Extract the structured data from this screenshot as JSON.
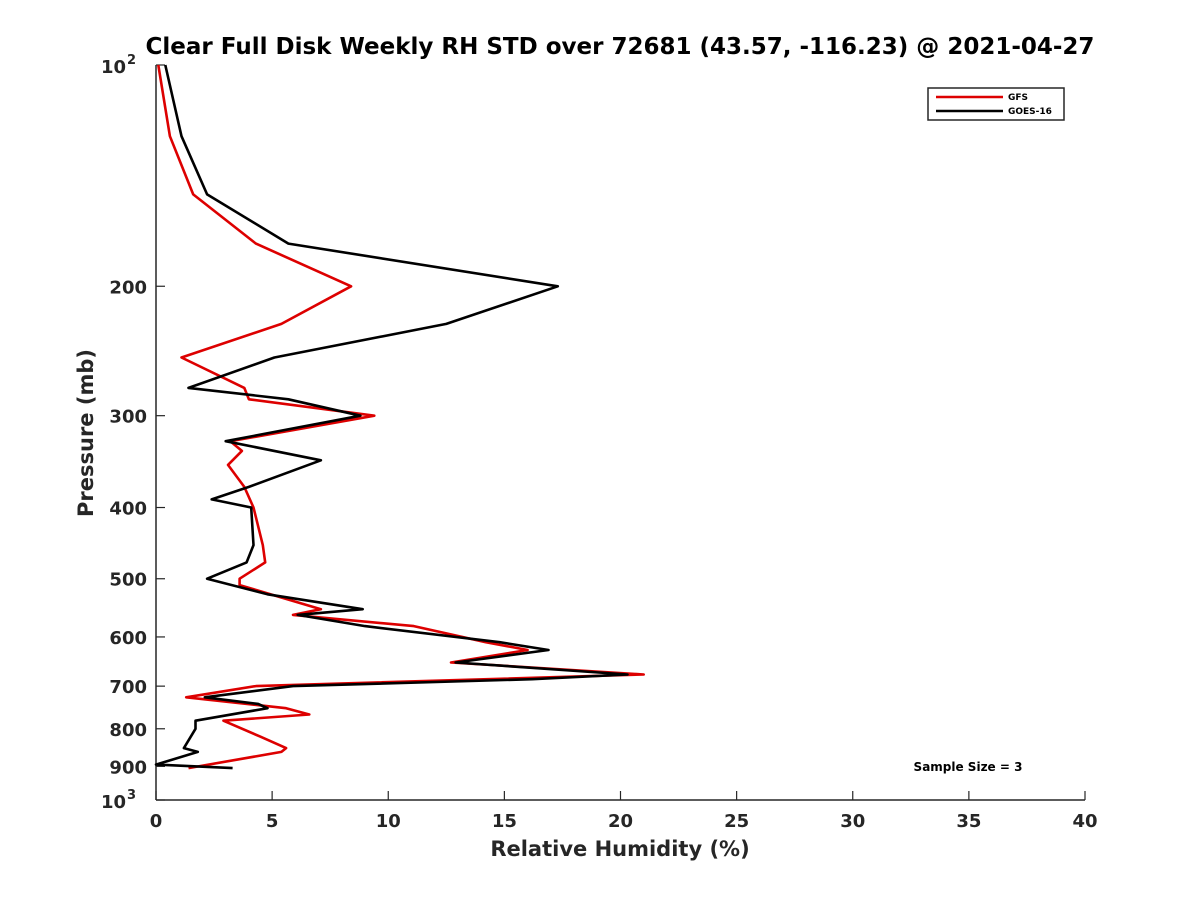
{
  "chart_data": {
    "type": "line",
    "title": "Clear Full Disk Weekly RH STD over 72681 (43.57, -116.23) @ 2021-04-27",
    "xlabel": "Relative Humidity (%)",
    "ylabel": "Pressure (mb)",
    "xlim": [
      0,
      40
    ],
    "ylim": [
      100,
      1000
    ],
    "y_scale": "log",
    "y_reversed": true,
    "x_ticks": [
      "0",
      "5",
      "10",
      "15",
      "20",
      "25",
      "30",
      "35",
      "40"
    ],
    "y_ticks": [
      {
        "value": 100,
        "base": "10",
        "exp": "2"
      },
      {
        "value": 200,
        "label": "200"
      },
      {
        "value": 300,
        "label": "300"
      },
      {
        "value": 400,
        "label": "400"
      },
      {
        "value": 500,
        "label": "500"
      },
      {
        "value": 600,
        "label": "600"
      },
      {
        "value": 700,
        "label": "700"
      },
      {
        "value": 800,
        "label": "800"
      },
      {
        "value": 900,
        "label": "900"
      },
      {
        "value": 1000,
        "base": "10",
        "exp": "3"
      }
    ],
    "grid": false,
    "legend_position": "top-right",
    "annotation": "Sample Size = 3",
    "series": [
      {
        "name": "GFS",
        "color": "#dd0000",
        "points": [
          [
            0.1,
            100
          ],
          [
            0.6,
            125
          ],
          [
            1.6,
            150
          ],
          [
            4.3,
            175
          ],
          [
            8.4,
            200
          ],
          [
            5.4,
            225
          ],
          [
            1.1,
            250
          ],
          [
            3.8,
            275
          ],
          [
            4.0,
            285
          ],
          [
            9.4,
            300
          ],
          [
            3.2,
            325
          ],
          [
            3.7,
            335
          ],
          [
            3.1,
            350
          ],
          [
            3.8,
            375
          ],
          [
            4.2,
            400
          ],
          [
            4.6,
            450
          ],
          [
            4.7,
            475
          ],
          [
            3.6,
            500
          ],
          [
            3.6,
            510
          ],
          [
            7.1,
            550
          ],
          [
            5.9,
            560
          ],
          [
            11.1,
            580
          ],
          [
            14.2,
            610
          ],
          [
            16.0,
            625
          ],
          [
            12.7,
            650
          ],
          [
            21.0,
            675
          ],
          [
            4.3,
            700
          ],
          [
            1.3,
            725
          ],
          [
            5.6,
            750
          ],
          [
            6.6,
            765
          ],
          [
            2.9,
            780
          ],
          [
            4.5,
            820
          ],
          [
            5.6,
            850
          ],
          [
            5.4,
            860
          ],
          [
            1.4,
            905
          ]
        ]
      },
      {
        "name": "GOES-16",
        "color": "#000000",
        "points": [
          [
            0.4,
            100
          ],
          [
            1.1,
            125
          ],
          [
            2.2,
            150
          ],
          [
            5.7,
            175
          ],
          [
            17.3,
            200
          ],
          [
            12.5,
            225
          ],
          [
            5.1,
            250
          ],
          [
            1.4,
            275
          ],
          [
            5.7,
            285
          ],
          [
            8.8,
            300
          ],
          [
            3.0,
            325
          ],
          [
            7.1,
            345
          ],
          [
            4.0,
            375
          ],
          [
            2.4,
            390
          ],
          [
            4.1,
            400
          ],
          [
            4.2,
            450
          ],
          [
            3.9,
            475
          ],
          [
            2.2,
            500
          ],
          [
            4.8,
            525
          ],
          [
            8.9,
            550
          ],
          [
            6.1,
            560
          ],
          [
            9.0,
            580
          ],
          [
            14.8,
            610
          ],
          [
            16.9,
            625
          ],
          [
            12.9,
            650
          ],
          [
            20.3,
            675
          ],
          [
            16.2,
            685
          ],
          [
            5.9,
            700
          ],
          [
            2.1,
            725
          ],
          [
            4.4,
            740
          ],
          [
            4.8,
            750
          ],
          [
            1.7,
            780
          ],
          [
            1.7,
            800
          ],
          [
            1.2,
            850
          ],
          [
            1.8,
            860
          ],
          [
            0.0,
            895
          ],
          [
            3.3,
            905
          ]
        ]
      }
    ]
  }
}
